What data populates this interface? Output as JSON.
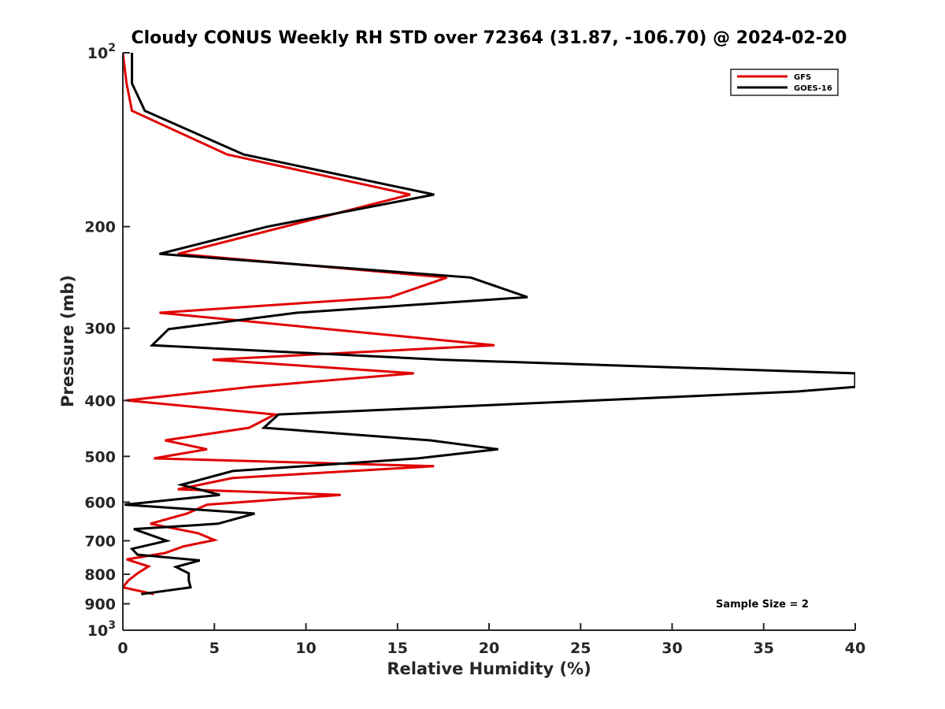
{
  "chart_data": {
    "type": "line",
    "title": "Cloudy CONUS Weekly RH STD over 72364 (31.87, -106.70) @ 2024-02-20",
    "xlabel": "Relative Humidity (%)",
    "ylabel": "Pressure (mb)",
    "xlim": [
      0,
      40
    ],
    "ylim": [
      100,
      1000
    ],
    "y_scale": "log",
    "y_reversed": true,
    "grid": false,
    "legend_position": "top-right",
    "x_ticks": [
      0,
      5,
      10,
      15,
      20,
      25,
      30,
      35,
      40
    ],
    "x_tick_labels": [
      "0",
      "5",
      "10",
      "15",
      "20",
      "25",
      "30",
      "35",
      "40"
    ],
    "y_ticks": [
      100,
      200,
      300,
      400,
      500,
      600,
      700,
      800,
      900,
      1000
    ],
    "y_tick_labels": [
      {
        "base": "10",
        "exp": "2"
      },
      {
        "base": "200",
        "exp": ""
      },
      {
        "base": "300",
        "exp": ""
      },
      {
        "base": "400",
        "exp": ""
      },
      {
        "base": "500",
        "exp": ""
      },
      {
        "base": "600",
        "exp": ""
      },
      {
        "base": "700",
        "exp": ""
      },
      {
        "base": "800",
        "exp": ""
      },
      {
        "base": "900",
        "exp": ""
      },
      {
        "base": "10",
        "exp": "3"
      }
    ],
    "annotation": "Sample Size = 2",
    "series": [
      {
        "name": "GFS",
        "color": "#e00000",
        "points": [
          [
            0.0,
            100
          ],
          [
            0.2,
            113
          ],
          [
            0.5,
            126
          ],
          [
            5.7,
            150
          ],
          [
            15.7,
            176
          ],
          [
            3.0,
            223
          ],
          [
            17.7,
            245
          ],
          [
            14.6,
            265
          ],
          [
            2.0,
            282
          ],
          [
            20.3,
            321
          ],
          [
            4.9,
            340
          ],
          [
            15.9,
            359
          ],
          [
            7.0,
            379
          ],
          [
            0.2,
            400
          ],
          [
            8.3,
            423
          ],
          [
            6.9,
            446
          ],
          [
            2.3,
            469
          ],
          [
            4.6,
            486
          ],
          [
            1.7,
            504
          ],
          [
            17.0,
            520
          ],
          [
            6.0,
            545
          ],
          [
            3.0,
            570
          ],
          [
            11.9,
            583
          ],
          [
            4.6,
            606
          ],
          [
            3.5,
            628
          ],
          [
            1.5,
            654
          ],
          [
            4.1,
            679
          ],
          [
            5.0,
            698
          ],
          [
            3.3,
            716
          ],
          [
            2.3,
            735
          ],
          [
            0.2,
            754
          ],
          [
            1.4,
            775
          ],
          [
            0.8,
            797
          ],
          [
            0.3,
            820
          ],
          [
            0.0,
            843
          ],
          [
            1.7,
            866
          ]
        ]
      },
      {
        "name": "GOES-16",
        "color": "#000000",
        "points": [
          [
            0.5,
            100
          ],
          [
            0.5,
            113
          ],
          [
            1.2,
            126
          ],
          [
            6.6,
            150
          ],
          [
            17.0,
            176
          ],
          [
            7.9,
            200
          ],
          [
            2.0,
            223
          ],
          [
            19.0,
            245
          ],
          [
            22.1,
            265
          ],
          [
            9.5,
            282
          ],
          [
            2.5,
            301
          ],
          [
            1.6,
            321
          ],
          [
            17.4,
            340
          ],
          [
            40.0,
            359
          ],
          [
            40.0,
            379
          ],
          [
            36.8,
            386
          ],
          [
            8.5,
            423
          ],
          [
            7.7,
            446
          ],
          [
            16.8,
            469
          ],
          [
            20.5,
            486
          ],
          [
            16.1,
            504
          ],
          [
            6.0,
            530
          ],
          [
            3.2,
            560
          ],
          [
            5.3,
            583
          ],
          [
            0.1,
            606
          ],
          [
            7.2,
            628
          ],
          [
            5.2,
            654
          ],
          [
            0.6,
            668
          ],
          [
            2.4,
            700
          ],
          [
            0.5,
            723
          ],
          [
            0.8,
            740
          ],
          [
            4.2,
            757
          ],
          [
            2.9,
            777
          ],
          [
            3.6,
            797
          ],
          [
            3.6,
            820
          ],
          [
            3.7,
            843
          ],
          [
            1.0,
            866
          ]
        ]
      }
    ]
  }
}
